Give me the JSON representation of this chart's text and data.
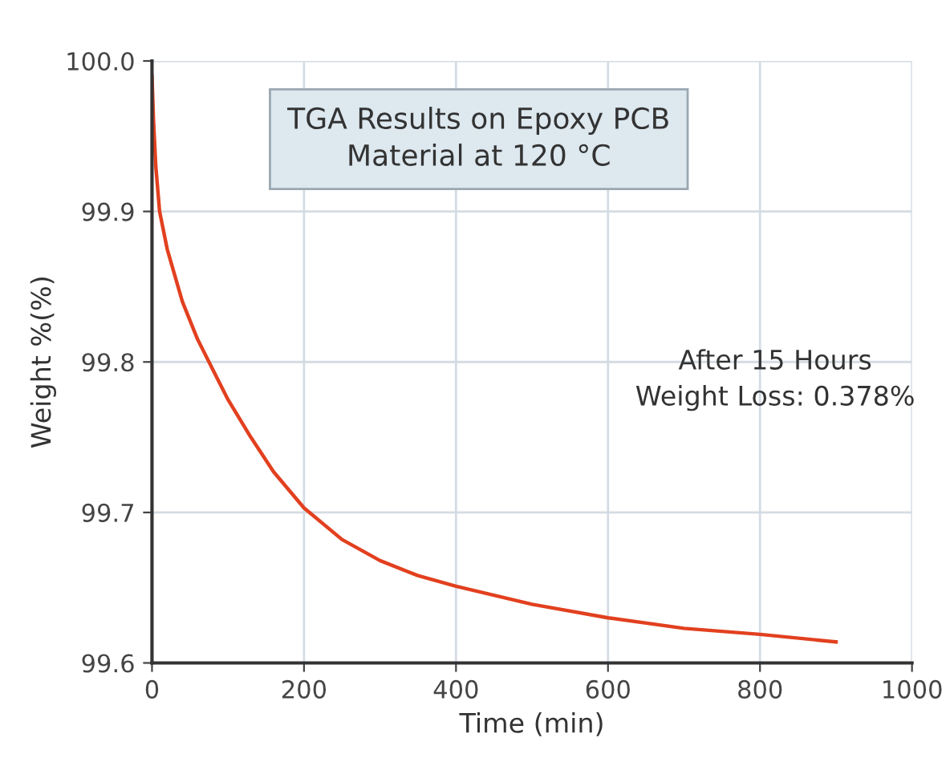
{
  "chart_data": {
    "type": "line",
    "title": "TGA Results on Epoxy PCB\nMaterial at 120 °C",
    "xlabel": "Time (min)",
    "ylabel": "Weight %(%)",
    "series": [
      {
        "color": "#e2401f",
        "x": [
          0,
          2,
          5,
          10,
          20,
          40,
          60,
          80,
          100,
          130,
          160,
          200,
          250,
          300,
          350,
          400,
          450,
          500,
          600,
          700,
          800,
          900
        ],
        "values": [
          99.99,
          99.96,
          99.93,
          99.9,
          99.875,
          99.84,
          99.815,
          99.795,
          99.775,
          99.75,
          99.727,
          99.703,
          99.682,
          99.668,
          99.658,
          99.651,
          99.645,
          99.639,
          99.63,
          99.623,
          99.619,
          99.614
        ]
      }
    ],
    "xlim": [
      0,
      1000
    ],
    "xticks": [
      0,
      200,
      400,
      600,
      800,
      1000
    ],
    "ylim": [
      99.6,
      100.0
    ],
    "yticks": [
      {
        "value": 99.6,
        "label": "99.6"
      },
      {
        "value": 99.7,
        "label": "99.7"
      },
      {
        "value": 99.8,
        "label": "99.8"
      },
      {
        "value": 99.9,
        "label": "99.9"
      },
      {
        "value": 100.0,
        "label": "100.0"
      }
    ],
    "grid": true,
    "annotations": [
      "After 15 Hours\nWeight Loss: 0.378%"
    ]
  }
}
